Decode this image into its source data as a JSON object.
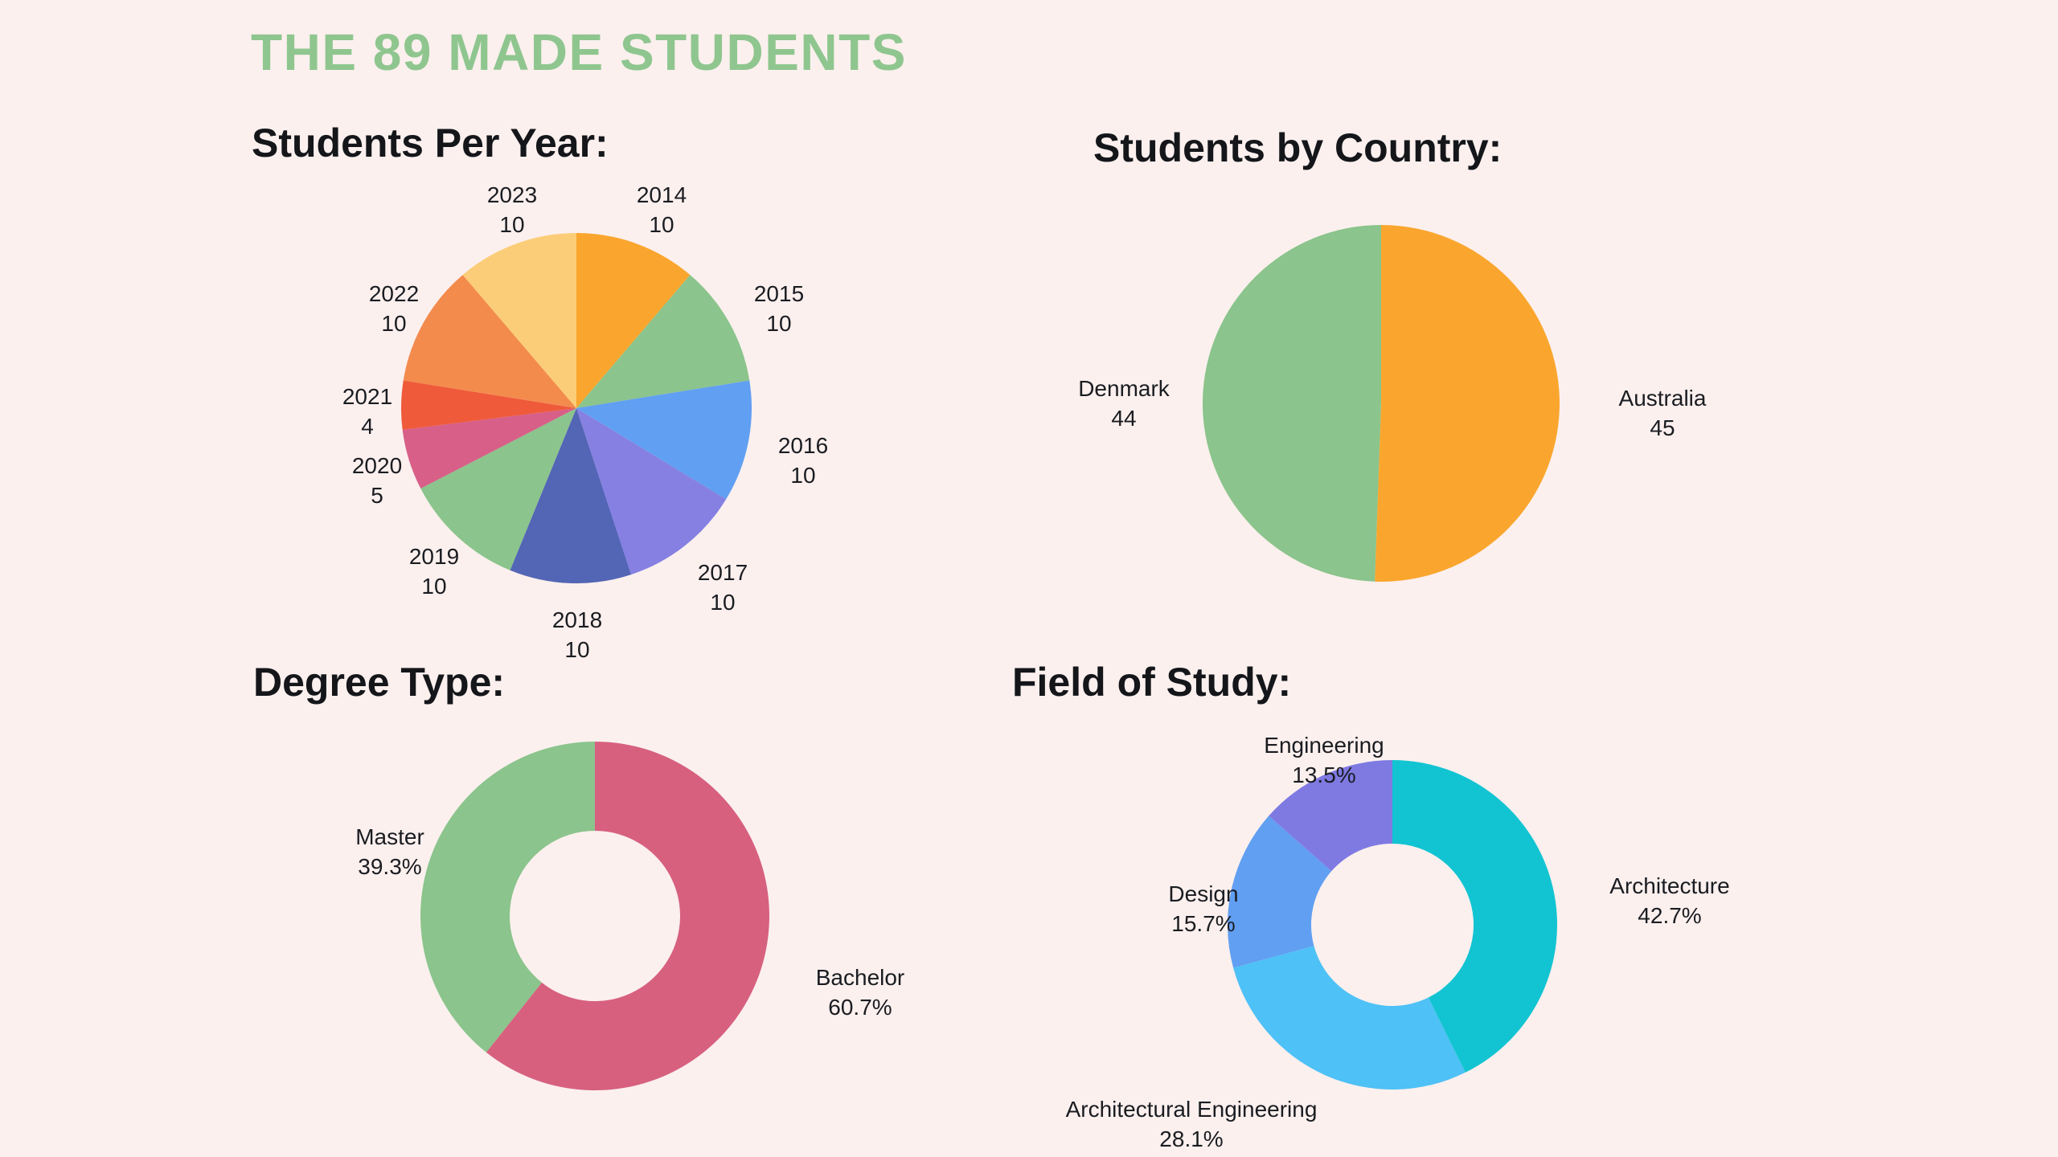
{
  "title": "THE 89 MADE STUDENTS",
  "total_students": 89,
  "chart_data": [
    {
      "id": "per_year",
      "type": "pie",
      "title": "Students Per Year:",
      "legend_position": "labels-around-slices",
      "slices": [
        {
          "label": "2014",
          "display_value": "10",
          "value": 10,
          "color": "#FAA62E"
        },
        {
          "label": "2015",
          "display_value": "10",
          "value": 10,
          "color": "#8BC48C"
        },
        {
          "label": "2016",
          "display_value": "10",
          "value": 10,
          "color": "#619FF2"
        },
        {
          "label": "2017",
          "display_value": "10",
          "value": 10,
          "color": "#8580E2"
        },
        {
          "label": "2018",
          "display_value": "10",
          "value": 10,
          "color": "#5365B5"
        },
        {
          "label": "2019",
          "display_value": "10",
          "value": 10,
          "color": "#8BC48C"
        },
        {
          "label": "2020",
          "display_value": "5",
          "value": 5,
          "color": "#D75F88"
        },
        {
          "label": "2021",
          "display_value": "4",
          "value": 4,
          "color": "#EF5A3B"
        },
        {
          "label": "2022",
          "display_value": "10",
          "value": 10,
          "color": "#F38B4D"
        },
        {
          "label": "2023",
          "display_value": "10",
          "value": 10,
          "color": "#FBCD78"
        }
      ]
    },
    {
      "id": "country",
      "type": "pie",
      "title": "Students by Country:",
      "legend_position": "labels-around-slices",
      "slices": [
        {
          "label": "Australia",
          "display_value": "45",
          "value": 45,
          "color": "#FAA62E"
        },
        {
          "label": "Denmark",
          "display_value": "44",
          "value": 44,
          "color": "#8BC48C"
        }
      ]
    },
    {
      "id": "degree",
      "type": "donut",
      "title": "Degree Type:",
      "legend_position": "labels-around-slices",
      "slices": [
        {
          "label": "Bachelor",
          "display_value": "60.7%",
          "value": 60.7,
          "color": "#D7607F"
        },
        {
          "label": "Master",
          "display_value": "39.3%",
          "value": 39.3,
          "color": "#8BC48C"
        }
      ]
    },
    {
      "id": "field",
      "type": "donut",
      "title": "Field of Study:",
      "legend_position": "labels-around-slices",
      "slices": [
        {
          "label": "Architecture",
          "display_value": "42.7%",
          "value": 42.7,
          "color": "#12C4D2"
        },
        {
          "label": "Architectural Engineering",
          "display_value": "28.1%",
          "value": 28.1,
          "color": "#4EC1F6"
        },
        {
          "label": "Design",
          "display_value": "15.7%",
          "value": 15.7,
          "color": "#619FF2"
        },
        {
          "label": "Engineering",
          "display_value": "13.5%",
          "value": 13.5,
          "color": "#7F7AE2"
        }
      ]
    }
  ],
  "colors": {
    "background": "#FBF0EE",
    "title_text": "#8FC68F",
    "heading_text": "#14161A",
    "label_text": "#1A1C21"
  }
}
